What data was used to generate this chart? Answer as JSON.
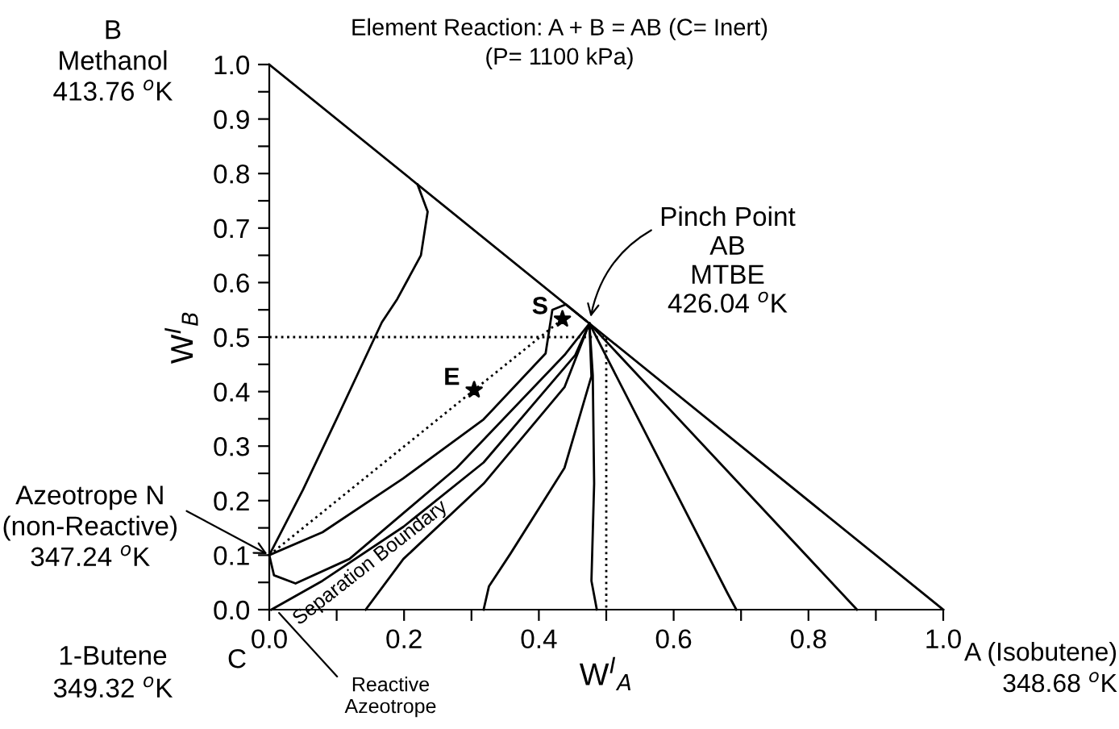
{
  "chart_data": {
    "type": "line",
    "title": "Element Reaction: A + B = AB (C= Inert)",
    "subtitle": "(P= 1100 kPa)",
    "xlabel": "W$^{I}$$_{A}$",
    "ylabel": "W$^{I}$$_{B}$",
    "xlim": [
      0,
      1
    ],
    "ylim": [
      0,
      1
    ],
    "xticks": [
      {
        "value": 0.0,
        "label": "0.0"
      },
      {
        "value": 0.1,
        "label": null
      },
      {
        "value": 0.2,
        "label": "0.2"
      },
      {
        "value": 0.3,
        "label": null
      },
      {
        "value": 0.4,
        "label": "0.4"
      },
      {
        "value": 0.5,
        "label": null
      },
      {
        "value": 0.6,
        "label": "0.6"
      },
      {
        "value": 0.7,
        "label": null
      },
      {
        "value": 0.8,
        "label": "0.8"
      },
      {
        "value": 0.9,
        "label": null
      },
      {
        "value": 1.0,
        "label": "1.0"
      }
    ],
    "yticks": [
      {
        "value": 0.0,
        "label": "0.0"
      },
      {
        "value": 0.05,
        "label": null
      },
      {
        "value": 0.1,
        "label": "0.1"
      },
      {
        "value": 0.15,
        "label": null
      },
      {
        "value": 0.2,
        "label": "0.2"
      },
      {
        "value": 0.25,
        "label": null
      },
      {
        "value": 0.3,
        "label": "0.3"
      },
      {
        "value": 0.35,
        "label": null
      },
      {
        "value": 0.4,
        "label": "0.4"
      },
      {
        "value": 0.45,
        "label": null
      },
      {
        "value": 0.5,
        "label": "0.5"
      },
      {
        "value": 0.55,
        "label": null
      },
      {
        "value": 0.6,
        "label": "0.6"
      },
      {
        "value": 0.65,
        "label": null
      },
      {
        "value": 0.7,
        "label": "0.7"
      },
      {
        "value": 0.75,
        "label": null
      },
      {
        "value": 0.8,
        "label": "0.8"
      },
      {
        "value": 0.85,
        "label": null
      },
      {
        "value": 0.9,
        "label": "0.9"
      },
      {
        "value": 0.95,
        "label": null
      },
      {
        "value": 1.0,
        "label": "1.0"
      }
    ],
    "series": [
      {
        "color": "#000000",
        "x": [
          0.0,
          1.0
        ],
        "values": [
          1.0,
          0.0
        ]
      },
      {
        "color": "#000000",
        "x": [
          0.22,
          0.235,
          0.225,
          0.19,
          0.167,
          0.1,
          0.05,
          0.0
        ],
        "values": [
          0.78,
          0.73,
          0.65,
          0.57,
          0.527,
          0.35,
          0.22,
          0.1
        ]
      },
      {
        "color": "#000000",
        "x": [
          0.0,
          0.079,
          0.199,
          0.318,
          0.41,
          0.42,
          0.44,
          0.47
        ],
        "values": [
          0.1,
          0.142,
          0.241,
          0.349,
          0.47,
          0.55,
          0.56,
          0.53
        ]
      },
      {
        "color": "#000000",
        "x": [
          0.0,
          0.007,
          0.039,
          0.119,
          0.278,
          0.438,
          0.475
        ],
        "values": [
          0.1,
          0.063,
          0.048,
          0.093,
          0.26,
          0.467,
          0.525
        ]
      },
      {
        "color": "#000000",
        "x": [
          0.003,
          0.079,
          0.199,
          0.318,
          0.454,
          0.475
        ],
        "values": [
          0.0,
          0.053,
          0.152,
          0.27,
          0.467,
          0.525
        ]
      },
      {
        "color": "#000000",
        "x": [
          0.143,
          0.199,
          0.318,
          0.438,
          0.475
        ],
        "values": [
          0.0,
          0.093,
          0.231,
          0.408,
          0.525
        ]
      },
      {
        "color": "#000000",
        "x": [
          0.318,
          0.326,
          0.358,
          0.438,
          0.478,
          0.475
        ],
        "values": [
          0.0,
          0.043,
          0.103,
          0.26,
          0.428,
          0.525
        ]
      },
      {
        "color": "#000000",
        "x": [
          0.486,
          0.478,
          0.482,
          0.48,
          0.475
        ],
        "values": [
          0.0,
          0.053,
          0.231,
          0.43,
          0.525
        ]
      },
      {
        "color": "#000000",
        "x": [
          0.693,
          0.68,
          0.475
        ],
        "values": [
          0.0,
          0.03,
          0.525
        ]
      },
      {
        "color": "#000000",
        "x": [
          0.872,
          0.475
        ],
        "values": [
          0.0,
          0.525
        ]
      },
      {
        "color": "#000000",
        "line_style": "dotted",
        "x": [
          0.0,
          0.304,
          0.435
        ],
        "values": [
          0.1,
          0.403,
          0.533
        ]
      },
      {
        "color": "#000000",
        "line_style": "dotted",
        "x": [
          0.0,
          0.5,
          0.5
        ],
        "values": [
          0.5,
          0.5,
          0.0
        ]
      },
      {
        "type": "scatter",
        "marker": "star",
        "color": "#000000",
        "x": [
          0.435,
          0.304
        ],
        "values": [
          0.533,
          0.403
        ]
      }
    ],
    "annotations": [
      "B\nMethanol\n413.76 $^{o}$K",
      {
        "text": "Pinch Point\nAB\nMTBE\n426.04 $^{o}$K",
        "x": 0.475,
        "y": 0.525
      },
      {
        "text": "S",
        "x": 0.435,
        "y": 0.533
      },
      {
        "text": "E",
        "x": 0.304,
        "y": 0.403
      },
      {
        "text": "Azeotrope N\n(non-Reactive)\n347.24 $^{o}$K",
        "x": 0.0,
        "y": 0.1
      },
      "1-Butene\n349.32 $^{o}$K",
      "C",
      {
        "text": "Reactive\nAzeotrope",
        "x": 0.01,
        "y": 0.0
      },
      "A (Isobutene)\n348.68 $^{o}$K",
      "Separation Boundary"
    ]
  }
}
